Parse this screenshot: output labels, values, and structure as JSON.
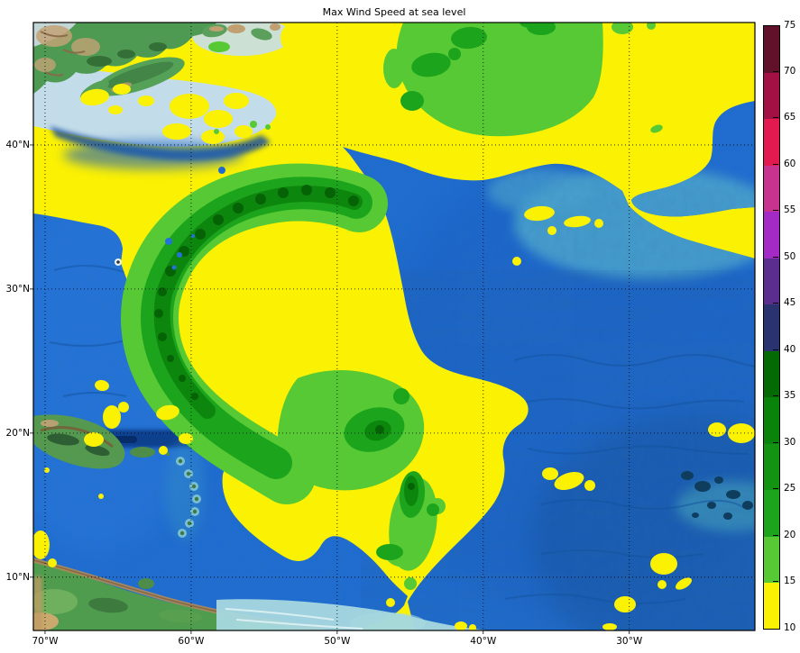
{
  "title": "Max Wind Speed at sea level",
  "axes": {
    "lon_ticks": [
      {
        "deg": 70,
        "label": "70°W"
      },
      {
        "deg": 60,
        "label": "60°W"
      },
      {
        "deg": 50,
        "label": "50°W"
      },
      {
        "deg": 40,
        "label": "40°W"
      },
      {
        "deg": 30,
        "label": "30°W"
      }
    ],
    "lat_ticks": [
      {
        "deg": 40,
        "label": "40°N"
      },
      {
        "deg": 30,
        "label": "30°N"
      },
      {
        "deg": 20,
        "label": "20°N"
      },
      {
        "deg": 10,
        "label": "10°N"
      }
    ],
    "extent": {
      "west_deg": 70.8,
      "east_deg": 21.4,
      "south_deg": 6.3,
      "north_deg": 48.5
    },
    "grid_style": "dotted"
  },
  "colorbar": {
    "min": 10,
    "max": 75,
    "step": 5,
    "tick_labels": [
      "10",
      "15",
      "20",
      "25",
      "30",
      "35",
      "40",
      "45",
      "50",
      "55",
      "60",
      "65",
      "70",
      "75"
    ],
    "segments": [
      {
        "from": 10,
        "to": 15,
        "color": "#FBF103"
      },
      {
        "from": 15,
        "to": 20,
        "color": "#57C934"
      },
      {
        "from": 20,
        "to": 25,
        "color": "#1CA51C"
      },
      {
        "from": 25,
        "to": 30,
        "color": "#129312"
      },
      {
        "from": 30,
        "to": 35,
        "color": "#0A830A"
      },
      {
        "from": 35,
        "to": 40,
        "color": "#046B04"
      },
      {
        "from": 40,
        "to": 45,
        "color": "#2A336F"
      },
      {
        "from": 45,
        "to": 50,
        "color": "#5B2D8E"
      },
      {
        "from": 50,
        "to": 55,
        "color": "#A32AC4"
      },
      {
        "from": 55,
        "to": 60,
        "color": "#C93390"
      },
      {
        "from": 60,
        "to": 65,
        "color": "#E31A50"
      },
      {
        "from": 65,
        "to": 70,
        "color": "#A31144"
      },
      {
        "from": 70,
        "to": 75,
        "color": "#611129"
      }
    ]
  },
  "map_colors": {
    "contour_yellow": "#FBF103",
    "contour_light_green": "#57C934",
    "contour_green": "#1CA51C",
    "contour_dark_green": "#0D860D",
    "contour_darkest_green": "#056205",
    "ocean_deep": "#1F6DD2",
    "ocean_teal": "#4BA4CD",
    "shelf_light": "#C2DCE9",
    "shallow_cyan": "#A6D8DE",
    "land_green": "#4E9A52",
    "land_tan": "#C2A276"
  },
  "chart_data": {
    "type": "heatmap",
    "subtype": "filled_contour_over_basemap",
    "title": "Max Wind Speed at sea level",
    "x_tick_labels": [
      "70°W",
      "60°W",
      "50°W",
      "40°W",
      "30°W"
    ],
    "y_tick_labels": [
      "40°N",
      "30°N",
      "20°N",
      "10°N"
    ],
    "map_extent": {
      "west_deg": 70.8,
      "east_deg": 21.4,
      "south_deg": 6.3,
      "north_deg": 48.5
    },
    "colorbar_range": [
      10,
      75
    ],
    "contour_interval": 5,
    "legend_position": "right",
    "grid": true,
    "levels": [
      {
        "from": 10,
        "to": 15,
        "color": "#FBF103"
      },
      {
        "from": 15,
        "to": 20,
        "color": "#57C934"
      },
      {
        "from": 20,
        "to": 25,
        "color": "#1CA51C"
      },
      {
        "from": 25,
        "to": 30,
        "color": "#129312"
      },
      {
        "from": 30,
        "to": 35,
        "color": "#0A830A"
      },
      {
        "from": 35,
        "to": 40,
        "color": "#046B04"
      },
      {
        "from": 40,
        "to": 45,
        "color": "#2A336F"
      },
      {
        "from": 45,
        "to": 50,
        "color": "#5B2D8E"
      },
      {
        "from": 50,
        "to": 55,
        "color": "#A32AC4"
      },
      {
        "from": 55,
        "to": 60,
        "color": "#C93390"
      },
      {
        "from": 60,
        "to": 65,
        "color": "#E31A50"
      },
      {
        "from": 65,
        "to": 70,
        "color": "#A31144"
      },
      {
        "from": 70,
        "to": 75,
        "color": "#611129"
      }
    ],
    "max_level_visible_on_map": 35
  }
}
